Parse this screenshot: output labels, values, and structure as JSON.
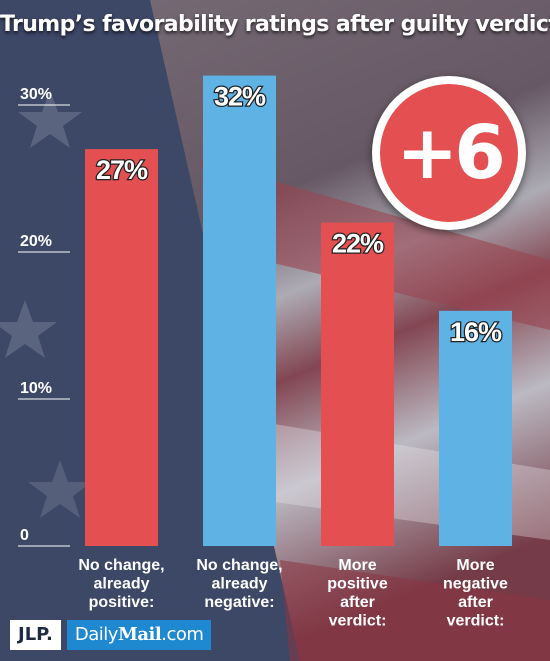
{
  "chart_data": {
    "type": "bar",
    "title": "Trump’s favorability ratings after guilty verdict",
    "categories": [
      [
        "No change,",
        "already",
        "positive:"
      ],
      [
        "No change,",
        "already",
        "negative:"
      ],
      [
        "More",
        "positive",
        "after",
        "verdict:"
      ],
      [
        "More",
        "negative",
        "after",
        "verdict:"
      ]
    ],
    "values": [
      27,
      32,
      22,
      16
    ],
    "value_labels": [
      "27%",
      "32%",
      "22%",
      "16%"
    ],
    "bar_colors": [
      "#e45052",
      "#5fb2e4",
      "#e45052",
      "#5fb2e4"
    ],
    "ylim": [
      0,
      30
    ],
    "yticks": [
      0,
      10,
      20,
      30
    ],
    "ytick_labels": [
      "0",
      "10%",
      "20%",
      "30%"
    ],
    "grid": false,
    "xlabel": "",
    "ylabel": ""
  },
  "badge": {
    "text": "+6"
  },
  "logos": {
    "jlp": "JLP.",
    "dailymail_prefix": "Daily",
    "dailymail_mail": "Mail",
    "dailymail_suffix": ".com"
  }
}
